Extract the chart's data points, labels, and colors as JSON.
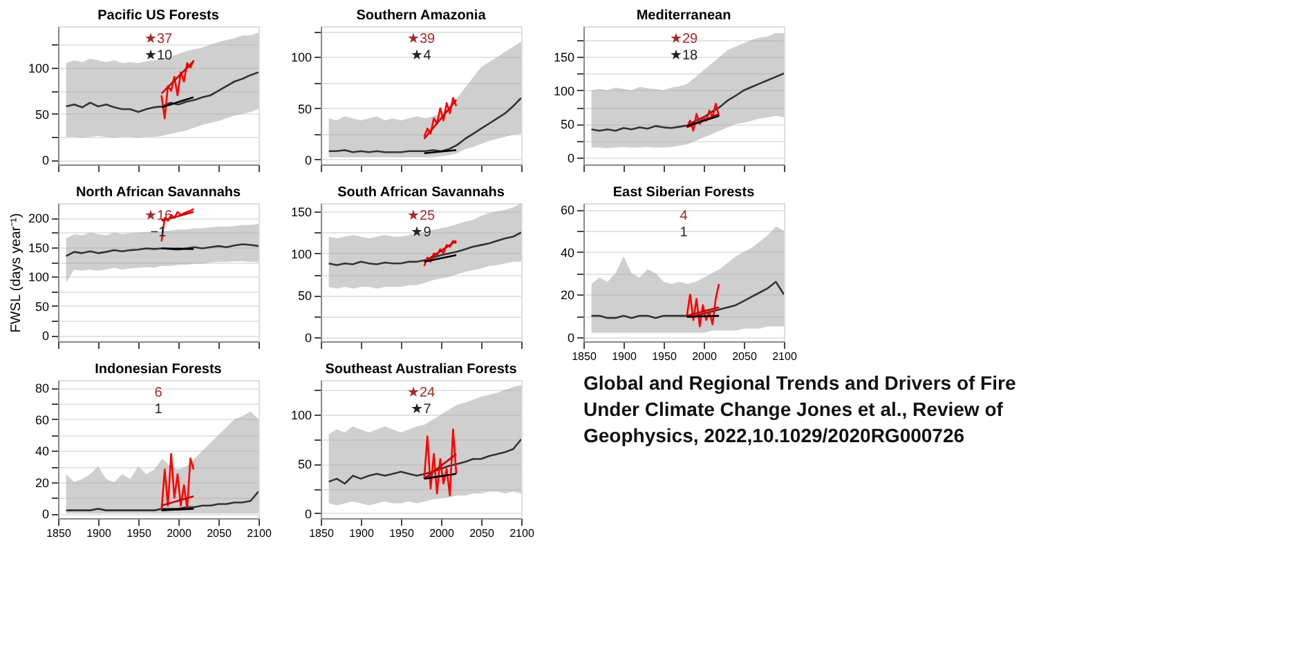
{
  "chart_data": [
    {
      "type": "line",
      "title": "Pacific US Forests",
      "xlim": [
        1850,
        2100
      ],
      "xticks": [
        1850,
        1900,
        1950,
        2000,
        2050,
        2100
      ],
      "ylim": [
        -5,
        145
      ],
      "yticks": [
        0,
        {
          "value": 25,
          "label": null
        },
        50,
        {
          "value": 75,
          "label": null
        },
        100,
        {
          "value": 125,
          "label": null
        }
      ],
      "grid": "y",
      "tick_labels": "y",
      "annotations": [
        "★37",
        "★10"
      ],
      "series": [
        {
          "color": "#333333",
          "x": [
            1860,
            1870,
            1880,
            1890,
            1900,
            1910,
            1920,
            1930,
            1940,
            1950,
            1960,
            1970,
            1980,
            1990,
            2000,
            2010,
            2020,
            2030,
            2040,
            2050,
            2060,
            2070,
            2080,
            2090,
            2100
          ],
          "values": [
            58,
            60,
            57,
            62,
            58,
            60,
            57,
            55,
            55,
            52,
            55,
            57,
            58,
            62,
            60,
            63,
            65,
            68,
            70,
            75,
            80,
            85,
            88,
            92,
            95
          ],
          "lower": [
            25,
            25,
            24,
            25,
            26,
            25,
            24,
            25,
            25,
            24,
            25,
            25,
            26,
            28,
            30,
            32,
            35,
            38,
            40,
            42,
            45,
            48,
            50,
            52,
            55
          ],
          "upper": [
            105,
            108,
            106,
            110,
            108,
            106,
            108,
            105,
            106,
            105,
            107,
            108,
            110,
            112,
            115,
            118,
            120,
            122,
            125,
            128,
            130,
            132,
            135,
            135,
            138
          ]
        },
        {
          "color": "#ff0000",
          "x": [
            1979,
            1983,
            1987,
            1991,
            1995,
            1999,
            2003,
            2007,
            2011,
            2015,
            2019
          ],
          "values": [
            70,
            45,
            80,
            75,
            90,
            70,
            95,
            85,
            105,
            100,
            108
          ]
        },
        {
          "color": "#cc0000",
          "x": [
            1979,
            2019
          ],
          "values": [
            72,
            107
          ]
        },
        {
          "color": "#000000",
          "x": [
            1979,
            2019
          ],
          "values": [
            57,
            68
          ]
        }
      ]
    },
    {
      "type": "line",
      "title": "Southern Amazonia",
      "xlim": [
        1850,
        2100
      ],
      "xticks": [
        1850,
        1900,
        1950,
        2000,
        2050,
        2100
      ],
      "ylim": [
        -5,
        130
      ],
      "yticks": [
        0,
        {
          "value": 25,
          "label": null
        },
        50,
        {
          "value": 75,
          "label": null
        },
        100,
        {
          "value": 125,
          "label": null
        }
      ],
      "grid": "y",
      "tick_labels": "y",
      "annotations": [
        "★39",
        "★4"
      ],
      "series": [
        {
          "color": "#333333",
          "x": [
            1860,
            1870,
            1880,
            1890,
            1900,
            1910,
            1920,
            1930,
            1940,
            1950,
            1960,
            1970,
            1980,
            1990,
            2000,
            2010,
            2020,
            2030,
            2040,
            2050,
            2060,
            2070,
            2080,
            2090,
            2100
          ],
          "values": [
            8,
            8,
            9,
            7,
            8,
            7,
            8,
            7,
            7,
            7,
            8,
            8,
            8,
            9,
            8,
            10,
            14,
            20,
            25,
            30,
            35,
            40,
            45,
            52,
            60
          ],
          "lower": [
            2,
            2,
            2,
            2,
            2,
            2,
            2,
            2,
            2,
            2,
            2,
            2,
            2,
            2,
            3,
            4,
            6,
            10,
            12,
            15,
            18,
            20,
            22,
            24,
            25
          ],
          "upper": [
            40,
            38,
            42,
            40,
            38,
            40,
            42,
            38,
            40,
            38,
            40,
            42,
            40,
            42,
            45,
            50,
            60,
            70,
            80,
            90,
            95,
            100,
            105,
            110,
            115
          ]
        },
        {
          "color": "#ff0000",
          "x": [
            1979,
            1983,
            1987,
            1991,
            1995,
            1999,
            2003,
            2007,
            2011,
            2015,
            2019
          ],
          "values": [
            22,
            30,
            25,
            40,
            35,
            50,
            38,
            55,
            45,
            60,
            52
          ]
        },
        {
          "color": "#cc0000",
          "x": [
            1979,
            2019
          ],
          "values": [
            20,
            58
          ]
        },
        {
          "color": "#000000",
          "x": [
            1979,
            2019
          ],
          "values": [
            6,
            9
          ]
        }
      ]
    },
    {
      "type": "line",
      "title": "Mediterranean",
      "xlim": [
        1850,
        2100
      ],
      "xticks": [
        1850,
        1900,
        1950,
        2000,
        2050,
        2100
      ],
      "ylim": [
        -10,
        195
      ],
      "yticks": [
        0,
        {
          "value": 25,
          "label": null
        },
        50,
        {
          "value": 75,
          "label": null
        },
        100,
        {
          "value": 125,
          "label": null
        },
        150,
        {
          "value": 175,
          "label": null
        }
      ],
      "grid": "y",
      "tick_labels": "y",
      "annotations": [
        "★29",
        "★18"
      ],
      "series": [
        {
          "color": "#333333",
          "x": [
            1860,
            1870,
            1880,
            1890,
            1900,
            1910,
            1920,
            1930,
            1940,
            1950,
            1960,
            1970,
            1980,
            1990,
            2000,
            2010,
            2020,
            2030,
            2040,
            2050,
            2060,
            2070,
            2080,
            2090,
            2100
          ],
          "values": [
            42,
            40,
            42,
            40,
            44,
            42,
            45,
            43,
            47,
            45,
            44,
            46,
            48,
            55,
            60,
            68,
            75,
            85,
            92,
            100,
            105,
            110,
            115,
            120,
            125
          ],
          "lower": [
            15,
            15,
            14,
            15,
            16,
            15,
            15,
            16,
            15,
            15,
            16,
            18,
            20,
            25,
            30,
            35,
            40,
            45,
            50,
            52,
            55,
            58,
            60,
            62,
            60
          ],
          "upper": [
            100,
            102,
            100,
            104,
            102,
            100,
            105,
            103,
            102,
            100,
            104,
            106,
            110,
            120,
            130,
            140,
            150,
            160,
            165,
            170,
            175,
            178,
            180,
            185,
            185
          ]
        },
        {
          "color": "#ff0000",
          "x": [
            1979,
            1983,
            1987,
            1991,
            1995,
            1999,
            2003,
            2007,
            2011,
            2015,
            2019
          ],
          "values": [
            45,
            55,
            40,
            65,
            50,
            60,
            55,
            70,
            60,
            80,
            62
          ]
        },
        {
          "color": "#cc0000",
          "x": [
            1979,
            2019
          ],
          "values": [
            45,
            65
          ]
        },
        {
          "color": "#000000",
          "x": [
            1979,
            2019
          ],
          "values": [
            47,
            62
          ]
        }
      ]
    },
    {
      "type": "line",
      "title": "North African Savannahs",
      "ylabel": "FWSL (days year⁻¹)",
      "xlim": [
        1850,
        2100
      ],
      "xticks": [
        1850,
        1900,
        1950,
        2000,
        2050,
        2100
      ],
      "ylim": [
        -10,
        225
      ],
      "yticks": [
        0,
        {
          "value": 25,
          "label": null
        },
        50,
        {
          "value": 75,
          "label": null
        },
        100,
        {
          "value": 125,
          "label": null
        },
        150,
        {
          "value": 175,
          "label": null
        },
        200
      ],
      "grid": "y",
      "tick_labels": "y",
      "annotations": [
        "★16",
        "−1"
      ],
      "series": [
        {
          "color": "#333333",
          "x": [
            1860,
            1870,
            1880,
            1890,
            1900,
            1910,
            1920,
            1930,
            1940,
            1950,
            1960,
            1970,
            1980,
            1990,
            2000,
            2010,
            2020,
            2030,
            2040,
            2050,
            2060,
            2070,
            2080,
            2090,
            2100
          ],
          "values": [
            135,
            142,
            140,
            143,
            140,
            142,
            145,
            143,
            145,
            146,
            148,
            147,
            148,
            147,
            146,
            148,
            150,
            148,
            150,
            152,
            150,
            153,
            155,
            154,
            152
          ],
          "lower": [
            90,
            112,
            110,
            112,
            110,
            112,
            115,
            112,
            114,
            115,
            116,
            115,
            118,
            118,
            120,
            120,
            122,
            122,
            124,
            125,
            125,
            126,
            126,
            125,
            125
          ],
          "upper": [
            165,
            172,
            170,
            175,
            172,
            170,
            175,
            172,
            174,
            175,
            176,
            175,
            178,
            178,
            180,
            180,
            182,
            182,
            184,
            185,
            185,
            186,
            188,
            188,
            190
          ]
        },
        {
          "color": "#ff0000",
          "x": [
            1979,
            1983,
            1987,
            1991,
            1995,
            1999,
            2003,
            2007,
            2011,
            2015,
            2019
          ],
          "values": [
            160,
            200,
            195,
            205,
            200,
            210,
            205,
            208,
            210,
            212,
            215
          ]
        },
        {
          "color": "#cc0000",
          "x": [
            1979,
            2019
          ],
          "values": [
            195,
            210
          ]
        },
        {
          "color": "#000000",
          "x": [
            1979,
            2019
          ],
          "values": [
            148,
            147
          ]
        }
      ]
    },
    {
      "type": "line",
      "title": "South African Savannahs",
      "xlim": [
        1850,
        2100
      ],
      "xticks": [
        1850,
        1900,
        1950,
        2000,
        2050,
        2100
      ],
      "ylim": [
        -5,
        160
      ],
      "yticks": [
        0,
        {
          "value": 25,
          "label": null
        },
        50,
        {
          "value": 75,
          "label": null
        },
        100,
        {
          "value": 125,
          "label": null
        },
        150
      ],
      "grid": "y",
      "tick_labels": "y",
      "annotations": [
        "★25",
        "★9"
      ],
      "series": [
        {
          "color": "#333333",
          "x": [
            1860,
            1870,
            1880,
            1890,
            1900,
            1910,
            1920,
            1930,
            1940,
            1950,
            1960,
            1970,
            1980,
            1990,
            2000,
            2010,
            2020,
            2030,
            2040,
            2050,
            2060,
            2070,
            2080,
            2090,
            2100
          ],
          "values": [
            88,
            86,
            88,
            87,
            90,
            88,
            87,
            89,
            88,
            88,
            90,
            90,
            92,
            95,
            98,
            100,
            102,
            105,
            108,
            110,
            112,
            115,
            118,
            120,
            125
          ],
          "lower": [
            60,
            58,
            60,
            58,
            60,
            60,
            58,
            60,
            60,
            60,
            62,
            62,
            65,
            68,
            70,
            72,
            75,
            78,
            80,
            82,
            85,
            86,
            88,
            90,
            90
          ],
          "upper": [
            120,
            118,
            120,
            122,
            120,
            118,
            120,
            122,
            120,
            120,
            122,
            124,
            126,
            128,
            130,
            132,
            135,
            138,
            140,
            145,
            148,
            150,
            152,
            155,
            160
          ]
        },
        {
          "color": "#ff0000",
          "x": [
            1979,
            1983,
            1987,
            1991,
            1995,
            1999,
            2003,
            2007,
            2011,
            2015,
            2019
          ],
          "values": [
            85,
            95,
            90,
            100,
            98,
            105,
            100,
            110,
            108,
            115,
            112
          ]
        },
        {
          "color": "#cc0000",
          "x": [
            1979,
            2019
          ],
          "values": [
            90,
            115
          ]
        },
        {
          "color": "#000000",
          "x": [
            1979,
            2019
          ],
          "values": [
            90,
            98
          ]
        }
      ]
    },
    {
      "type": "line",
      "title": "East Siberian Forests",
      "xlim": [
        1850,
        2100
      ],
      "xticks": [
        1850,
        1900,
        1950,
        2000,
        2050,
        2100
      ],
      "ylim": [
        -2,
        63
      ],
      "yticks": [
        0,
        {
          "value": 10,
          "label": null
        },
        20,
        {
          "value": 30,
          "label": null
        },
        40,
        {
          "value": 50,
          "label": null
        },
        60
      ],
      "grid": "y",
      "annotations": [
        "4",
        "1"
      ],
      "series": [
        {
          "color": "#333333",
          "x": [
            1860,
            1870,
            1880,
            1890,
            1900,
            1910,
            1920,
            1930,
            1940,
            1950,
            1960,
            1970,
            1980,
            1990,
            2000,
            2010,
            2020,
            2030,
            2040,
            2050,
            2060,
            2070,
            2080,
            2090,
            2100
          ],
          "values": [
            10,
            10,
            9,
            9,
            10,
            9,
            10,
            10,
            9,
            10,
            10,
            10,
            10,
            10,
            11,
            12,
            13,
            14,
            15,
            17,
            19,
            21,
            23,
            26,
            20
          ],
          "lower": [
            2,
            2,
            2,
            2,
            2,
            2,
            2,
            2,
            2,
            2,
            2,
            2,
            2,
            2,
            2,
            3,
            3,
            3,
            3,
            4,
            4,
            4,
            5,
            5,
            5
          ],
          "upper": [
            25,
            28,
            26,
            30,
            38,
            30,
            28,
            32,
            30,
            26,
            25,
            26,
            25,
            26,
            28,
            30,
            32,
            35,
            38,
            40,
            42,
            45,
            48,
            52,
            50
          ]
        },
        {
          "color": "#ff0000",
          "x": [
            1979,
            1983,
            1987,
            1991,
            1995,
            1999,
            2003,
            2007,
            2011,
            2015,
            2019
          ],
          "values": [
            10,
            20,
            8,
            18,
            5,
            15,
            8,
            12,
            6,
            18,
            25
          ]
        },
        {
          "color": "#cc0000",
          "x": [
            1979,
            2019
          ],
          "values": [
            10,
            14
          ]
        },
        {
          "color": "#000000",
          "x": [
            1979,
            2019
          ],
          "values": [
            9.5,
            10
          ]
        }
      ]
    },
    {
      "type": "line",
      "title": "Indonesian Forests",
      "xlim": [
        1850,
        2100
      ],
      "xticks": [
        1850,
        1900,
        1950,
        2000,
        2050,
        2100
      ],
      "ylim": [
        -3,
        85
      ],
      "yticks": [
        0,
        {
          "value": 10,
          "label": null
        },
        20,
        {
          "value": 30,
          "label": null
        },
        40,
        {
          "value": 50,
          "label": null
        },
        60,
        {
          "value": 70,
          "label": null
        },
        80
      ],
      "grid": "y",
      "annotations": [
        "6",
        "1"
      ],
      "series": [
        {
          "color": "#333333",
          "x": [
            1860,
            1870,
            1880,
            1890,
            1900,
            1910,
            1920,
            1930,
            1940,
            1950,
            1960,
            1970,
            1980,
            1990,
            2000,
            2010,
            2020,
            2030,
            2040,
            2050,
            2060,
            2070,
            2080,
            2090,
            2100
          ],
          "values": [
            2,
            2,
            2,
            2,
            3,
            2,
            2,
            2,
            2,
            2,
            2,
            2,
            3,
            3,
            3,
            4,
            4,
            5,
            5,
            6,
            6,
            7,
            7,
            8,
            14
          ],
          "lower": [
            0,
            0,
            0,
            0,
            0,
            0,
            0,
            0,
            0,
            0,
            0,
            0,
            0,
            0,
            0,
            0,
            0,
            0,
            0,
            0,
            0,
            0,
            0,
            0,
            0
          ],
          "upper": [
            25,
            20,
            22,
            25,
            30,
            22,
            20,
            25,
            22,
            30,
            25,
            28,
            35,
            30,
            28,
            30,
            35,
            40,
            45,
            50,
            55,
            60,
            62,
            65,
            60
          ]
        },
        {
          "color": "#ff0000",
          "x": [
            1979,
            1983,
            1987,
            1991,
            1995,
            1999,
            2003,
            2007,
            2011,
            2015,
            2019
          ],
          "values": [
            2,
            28,
            5,
            38,
            10,
            25,
            5,
            18,
            3,
            35,
            28
          ]
        },
        {
          "color": "#cc0000",
          "x": [
            1979,
            2019
          ],
          "values": [
            5,
            11
          ]
        },
        {
          "color": "#000000",
          "x": [
            1979,
            2019
          ],
          "values": [
            2,
            3
          ]
        }
      ]
    },
    {
      "type": "line",
      "title": "Southeast Australian Forests",
      "xlim": [
        1850,
        2100
      ],
      "xticks": [
        1850,
        1900,
        1950,
        2000,
        2050,
        2100
      ],
      "ylim": [
        -5,
        135
      ],
      "yticks": [
        0,
        {
          "value": 25,
          "label": null
        },
        50,
        {
          "value": 75,
          "label": null
        },
        100,
        {
          "value": 125,
          "label": null
        }
      ],
      "grid": "y",
      "annotations": [
        "★24",
        "★7"
      ],
      "series": [
        {
          "color": "#333333",
          "x": [
            1860,
            1870,
            1880,
            1890,
            1900,
            1910,
            1920,
            1930,
            1940,
            1950,
            1960,
            1970,
            1980,
            1990,
            2000,
            2010,
            2020,
            2030,
            2040,
            2050,
            2060,
            2070,
            2080,
            2090,
            2100
          ],
          "values": [
            32,
            35,
            30,
            38,
            35,
            38,
            40,
            38,
            40,
            42,
            40,
            38,
            40,
            42,
            45,
            48,
            50,
            52,
            55,
            55,
            58,
            60,
            62,
            65,
            75
          ],
          "lower": [
            10,
            8,
            10,
            12,
            10,
            8,
            10,
            12,
            10,
            10,
            12,
            10,
            12,
            14,
            15,
            16,
            18,
            18,
            20,
            20,
            22,
            22,
            20,
            22,
            20
          ],
          "upper": [
            80,
            85,
            82,
            88,
            85,
            82,
            85,
            88,
            85,
            82,
            85,
            88,
            90,
            95,
            100,
            105,
            110,
            112,
            115,
            118,
            120,
            122,
            125,
            128,
            130
          ]
        },
        {
          "color": "#ff0000",
          "x": [
            1979,
            1983,
            1987,
            1991,
            1995,
            1999,
            2003,
            2007,
            2011,
            2015,
            2019
          ],
          "values": [
            35,
            78,
            25,
            60,
            20,
            55,
            30,
            45,
            18,
            85,
            40
          ]
        },
        {
          "color": "#cc0000",
          "x": [
            1979,
            2019
          ],
          "values": [
            35,
            60
          ]
        },
        {
          "color": "#000000",
          "x": [
            1979,
            2019
          ],
          "values": [
            35,
            40
          ]
        }
      ]
    },
    {
      "type": "other",
      "annotations": [
        "Global and Regional Trends and Drivers of Fire Under Climate Change Jones et al., Review of Geophysics, 2022,10.1029/2020RG000726"
      ]
    }
  ]
}
